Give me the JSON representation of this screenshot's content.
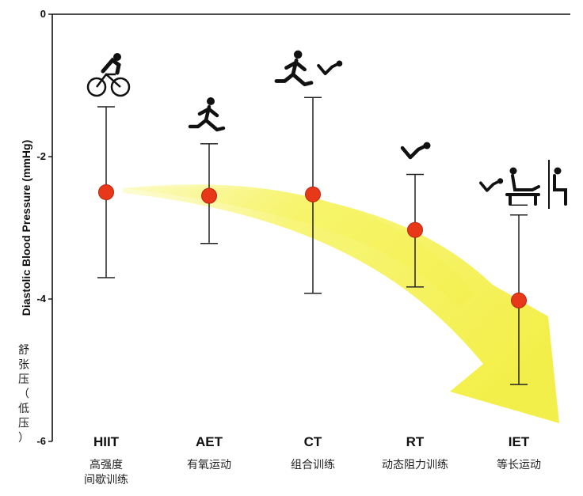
{
  "chart_data": {
    "type": "scatter",
    "ylabel": "Diastolic Blood Pressure (mmHg)",
    "ylabel_cn": [
      "舒",
      "张",
      "压",
      "（",
      "低",
      "压",
      "）"
    ],
    "ylim": [
      -6,
      0
    ],
    "yticks": [
      0,
      -2,
      -4,
      -6
    ],
    "categories": [
      {
        "name": "HIIT",
        "cn": [
          "高强度",
          "间歇训练"
        ],
        "mean": -2.5,
        "upper": -1.3,
        "lower": -3.7,
        "icon": "cyclist-icon"
      },
      {
        "name": "AET",
        "cn": [
          "有氧运动"
        ],
        "mean": -2.55,
        "upper": -1.82,
        "lower": -3.22,
        "icon": "runner-icon"
      },
      {
        "name": "CT",
        "cn": [
          "组合训练"
        ],
        "mean": -2.53,
        "upper": -1.17,
        "lower": -3.92,
        "icon": "runner-situp-icon"
      },
      {
        "name": "RT",
        "cn": [
          "动态阻力训练"
        ],
        "mean": -3.03,
        "upper": -2.25,
        "lower": -3.83,
        "icon": "situp-icon"
      },
      {
        "name": "IET",
        "cn": [
          "等长运动"
        ],
        "mean": -4.02,
        "upper": -2.82,
        "lower": -5.2,
        "icon": "isometric-icon"
      }
    ],
    "marker_color": "#e8381a",
    "arrow_color": "#f7f46a"
  }
}
